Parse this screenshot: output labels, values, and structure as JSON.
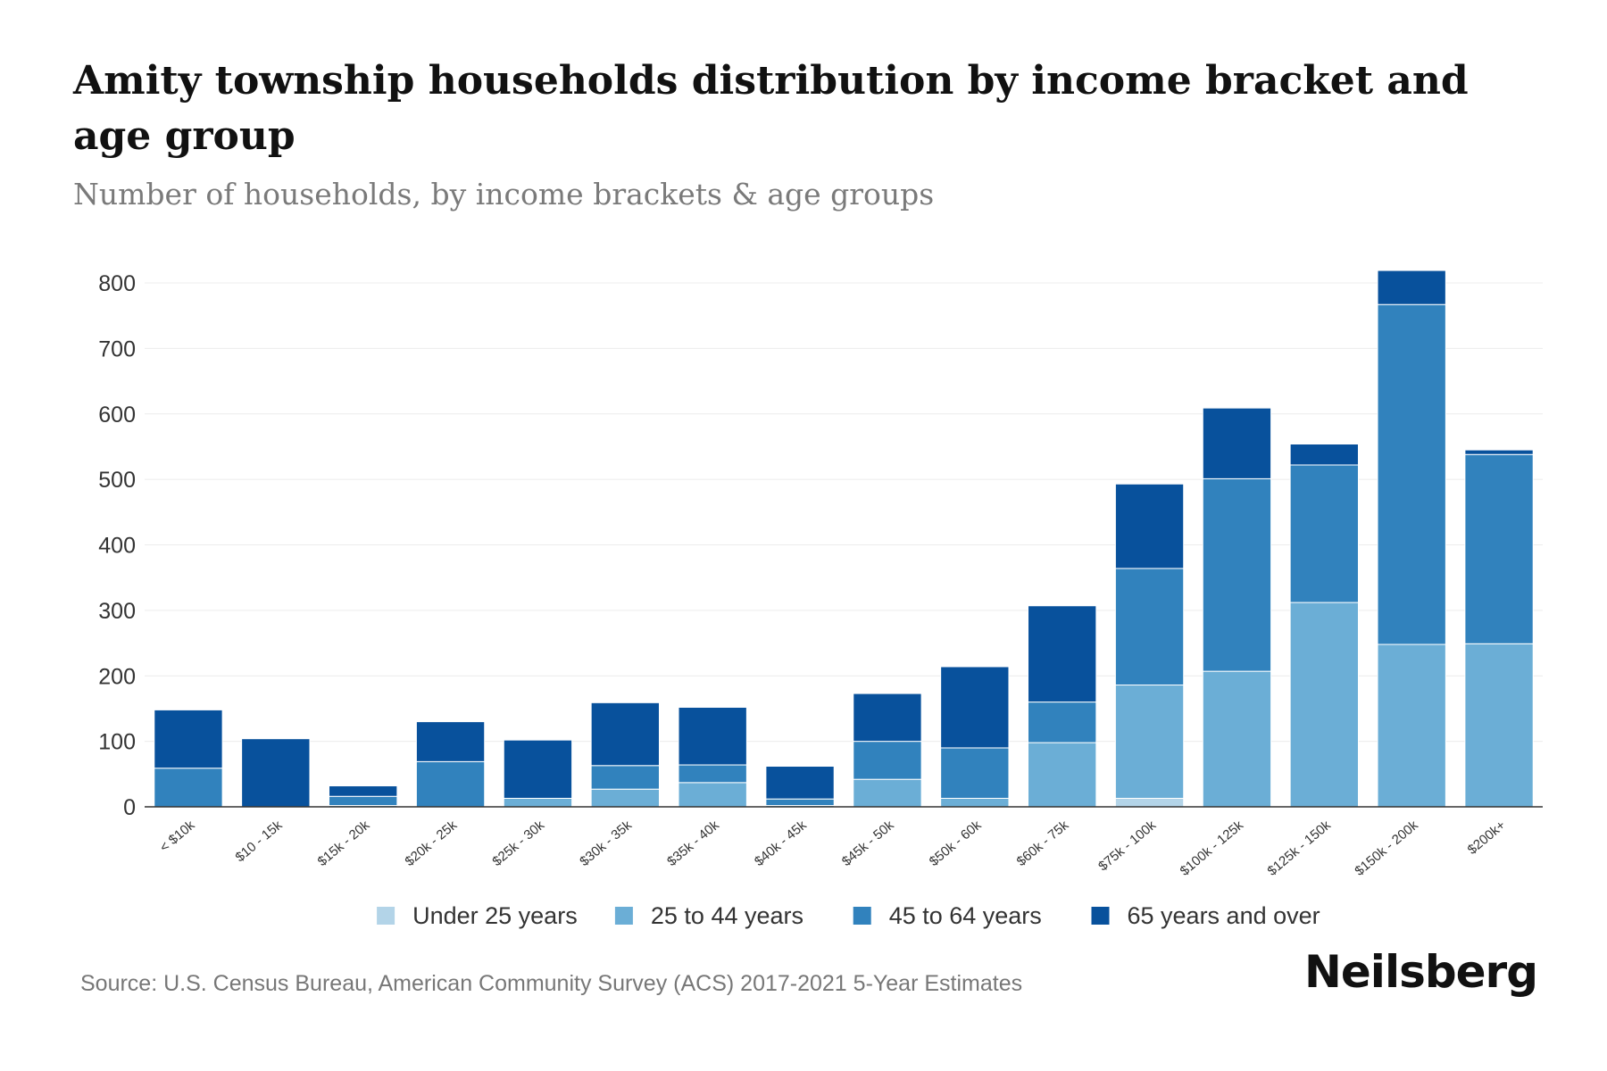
{
  "chart_data": {
    "type": "bar",
    "stacked": true,
    "title": "Amity township households distribution by income bracket and age group",
    "subtitle": "Number of households, by income brackets & age groups",
    "xlabel": "",
    "ylabel": "",
    "ylim": [
      0,
      800
    ],
    "yticks": [
      0,
      100,
      200,
      300,
      400,
      500,
      600,
      700,
      800
    ],
    "grid": true,
    "legend_position": "bottom",
    "categories": [
      "< $10k",
      "$10 - 15k",
      "$15k - 20k",
      "$20k - 25k",
      "$25k - 30k",
      "$30k - 35k",
      "$35k - 40k",
      "$40k - 45k",
      "$45k - 50k",
      "$50k - 60k",
      "$60k - 75k",
      "$75k - 100k",
      "$100k - 125k",
      "$125k - 150k",
      "$150k - 200k",
      "$200k+"
    ],
    "series": [
      {
        "name": "Under 25 years",
        "color": "#b3d4e8",
        "values": [
          0,
          0,
          0,
          0,
          0,
          0,
          0,
          0,
          0,
          0,
          0,
          13,
          0,
          0,
          0,
          0
        ]
      },
      {
        "name": "25 to 44 years",
        "color": "#6baed6",
        "values": [
          0,
          0,
          2,
          0,
          13,
          27,
          37,
          2,
          42,
          13,
          98,
          173,
          207,
          312,
          248,
          249
        ]
      },
      {
        "name": "45 to 64 years",
        "color": "#3182bd",
        "values": [
          59,
          0,
          14,
          69,
          0,
          36,
          27,
          10,
          58,
          77,
          62,
          178,
          294,
          210,
          519,
          289
        ]
      },
      {
        "name": "65 years and over",
        "color": "#08519c",
        "values": [
          89,
          104,
          16,
          61,
          89,
          96,
          88,
          50,
          73,
          124,
          147,
          129,
          108,
          32,
          52,
          7
        ]
      }
    ]
  },
  "source": "Source: U.S. Census Bureau, American Community Survey (ACS) 2017-2021 5-Year Estimates",
  "brand": "Neilsberg"
}
